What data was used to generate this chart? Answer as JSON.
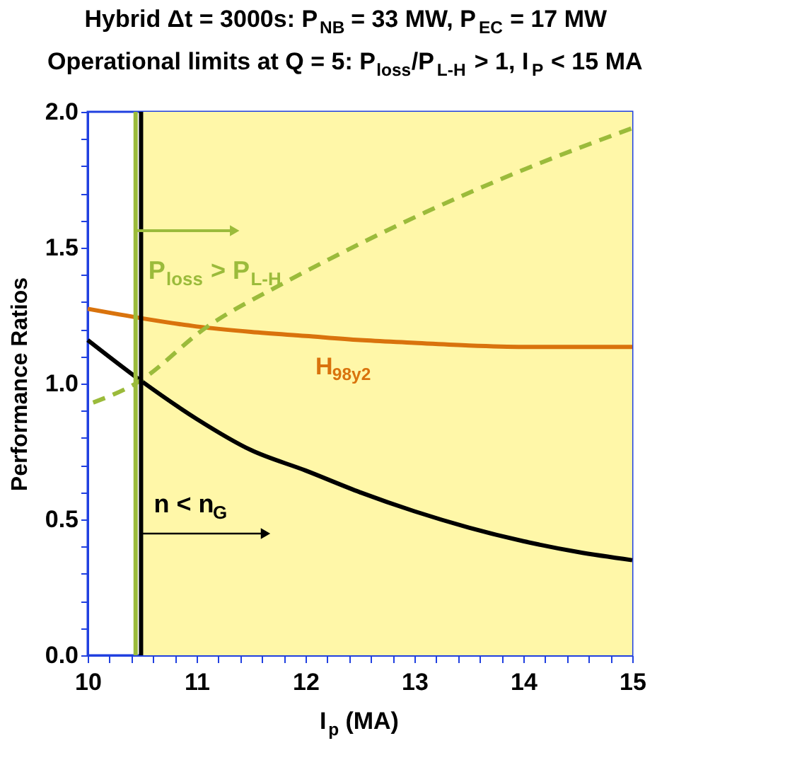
{
  "chart_data": {
    "type": "line",
    "title": "Hybrid Δt = 3000s: P$_{NB}$ = 33 MW, P$_{EC}$ = 17 MW",
    "subtitle": "Operational limits at Q = 5: P$_{loss}$/P$_{L-H}$ > 1, I$_{P}$ < 15 MA",
    "xlabel": "I$_{p}$ (MA)",
    "ylabel": "Performance Ratios",
    "series": [
      {
        "color": "#000000",
        "line_style": "solid",
        "x": [
          10,
          10.49,
          11,
          11.5,
          12,
          12.5,
          13,
          13.5,
          14,
          14.5,
          15
        ],
        "values": [
          1.16,
          1.01,
          0.87,
          0.755,
          0.68,
          0.6,
          0.53,
          0.47,
          0.42,
          0.38,
          0.35
        ]
      },
      {
        "name": "H$_{98y2}$",
        "color": "#d9730d",
        "line_style": "solid",
        "x": [
          10,
          10.5,
          11,
          11.5,
          12,
          12.5,
          13,
          13.5,
          14,
          15
        ],
        "values": [
          1.275,
          1.24,
          1.21,
          1.19,
          1.175,
          1.16,
          1.15,
          1.14,
          1.135,
          1.135
        ]
      },
      {
        "color": "#9bbb3b",
        "line_style": "dashed",
        "x": [
          10.05,
          10.44,
          11.1,
          11.8,
          12.23,
          13.1,
          13.96,
          15
        ],
        "values": [
          0.93,
          1.0,
          1.21,
          1.37,
          1.46,
          1.63,
          1.78,
          1.94
        ]
      }
    ],
    "ref_lines": [
      {
        "axis": "x",
        "value": 10.44,
        "color": "#9bbb3b"
      },
      {
        "axis": "x",
        "value": 10.49,
        "color": "#000000"
      }
    ],
    "bands": [
      {
        "axis": "x",
        "from": 10.49,
        "to": 15,
        "color": "#fff7a8"
      }
    ],
    "annotations": [
      "P$_{loss}$ > P$_{L-H}$",
      "n < n$_{G}$"
    ],
    "xlim": [
      10,
      15
    ],
    "ylim": [
      0,
      2.0
    ],
    "xticks": [
      10,
      {
        "value": 10.2,
        "label": null
      },
      {
        "value": 10.4,
        "label": null
      },
      {
        "value": 10.6,
        "label": null
      },
      {
        "value": 10.8,
        "label": null
      },
      11,
      {
        "value": 11.2,
        "label": null
      },
      {
        "value": 11.4,
        "label": null
      },
      {
        "value": 11.6,
        "label": null
      },
      {
        "value": 11.8,
        "label": null
      },
      12,
      {
        "value": 12.2,
        "label": null
      },
      {
        "value": 12.4,
        "label": null
      },
      {
        "value": 12.6,
        "label": null
      },
      {
        "value": 12.8,
        "label": null
      },
      13,
      {
        "value": 13.2,
        "label": null
      },
      {
        "value": 13.4,
        "label": null
      },
      {
        "value": 13.6,
        "label": null
      },
      {
        "value": 13.8,
        "label": null
      },
      14,
      {
        "value": 14.2,
        "label": null
      },
      {
        "value": 14.4,
        "label": null
      },
      {
        "value": 14.6,
        "label": null
      },
      {
        "value": 14.8,
        "label": null
      },
      15
    ],
    "yticks": [
      {
        "value": 0,
        "label": "0.0"
      },
      {
        "value": 0.1,
        "label": null
      },
      {
        "value": 0.2,
        "label": null
      },
      {
        "value": 0.3,
        "label": null
      },
      {
        "value": 0.4,
        "label": null
      },
      0.5,
      {
        "value": 0.6,
        "label": null
      },
      {
        "value": 0.7,
        "label": null
      },
      {
        "value": 0.8,
        "label": null
      },
      {
        "value": 0.9,
        "label": null
      },
      {
        "value": 1,
        "label": "1.0"
      },
      {
        "value": 1.1,
        "label": null
      },
      {
        "value": 1.2,
        "label": null
      },
      {
        "value": 1.3,
        "label": null
      },
      {
        "value": 1.4,
        "label": null
      },
      1.5,
      {
        "value": 1.6,
        "label": null
      },
      {
        "value": 1.7,
        "label": null
      },
      {
        "value": 1.8,
        "label": null
      },
      {
        "value": 1.9,
        "label": null
      },
      {
        "value": 2,
        "label": "2.0"
      }
    ],
    "grid": false,
    "marker": "none"
  }
}
